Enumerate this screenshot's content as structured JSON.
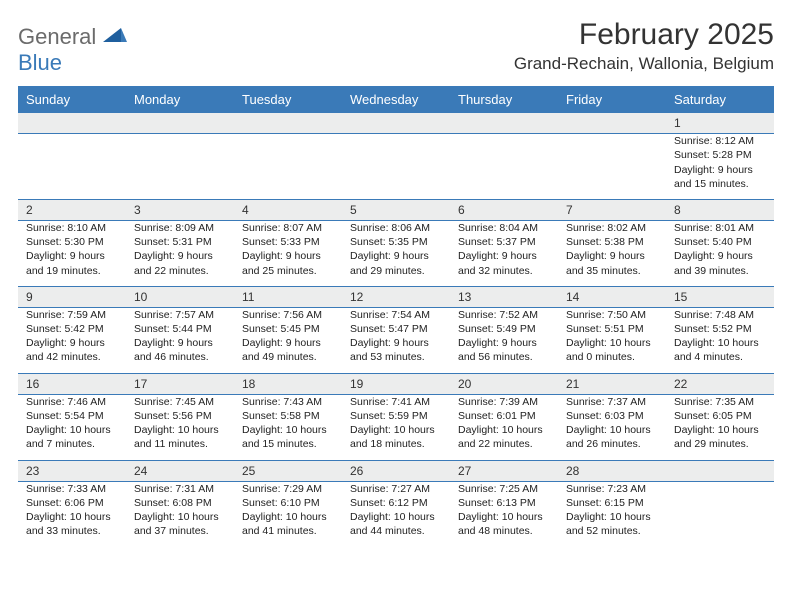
{
  "brand": {
    "word1": "General",
    "word2": "Blue"
  },
  "title": "February 2025",
  "location": "Grand-Rechain, Wallonia, Belgium",
  "colors": {
    "header_bg": "#3a7ab8",
    "header_text": "#ffffff",
    "daynum_bg": "#eceded",
    "border": "#3a7ab8",
    "text": "#222222",
    "logo_gray": "#6b6b6b",
    "logo_blue": "#3a7ab8",
    "page_bg": "#ffffff"
  },
  "fonts": {
    "title_size_pt": 22,
    "location_size_pt": 13,
    "header_size_pt": 10,
    "body_size_pt": 8
  },
  "day_headers": [
    "Sunday",
    "Monday",
    "Tuesday",
    "Wednesday",
    "Thursday",
    "Friday",
    "Saturday"
  ],
  "weeks": [
    [
      null,
      null,
      null,
      null,
      null,
      null,
      {
        "n": "1",
        "sunrise": "Sunrise: 8:12 AM",
        "sunset": "Sunset: 5:28 PM",
        "d1": "Daylight: 9 hours",
        "d2": "and 15 minutes."
      }
    ],
    [
      {
        "n": "2",
        "sunrise": "Sunrise: 8:10 AM",
        "sunset": "Sunset: 5:30 PM",
        "d1": "Daylight: 9 hours",
        "d2": "and 19 minutes."
      },
      {
        "n": "3",
        "sunrise": "Sunrise: 8:09 AM",
        "sunset": "Sunset: 5:31 PM",
        "d1": "Daylight: 9 hours",
        "d2": "and 22 minutes."
      },
      {
        "n": "4",
        "sunrise": "Sunrise: 8:07 AM",
        "sunset": "Sunset: 5:33 PM",
        "d1": "Daylight: 9 hours",
        "d2": "and 25 minutes."
      },
      {
        "n": "5",
        "sunrise": "Sunrise: 8:06 AM",
        "sunset": "Sunset: 5:35 PM",
        "d1": "Daylight: 9 hours",
        "d2": "and 29 minutes."
      },
      {
        "n": "6",
        "sunrise": "Sunrise: 8:04 AM",
        "sunset": "Sunset: 5:37 PM",
        "d1": "Daylight: 9 hours",
        "d2": "and 32 minutes."
      },
      {
        "n": "7",
        "sunrise": "Sunrise: 8:02 AM",
        "sunset": "Sunset: 5:38 PM",
        "d1": "Daylight: 9 hours",
        "d2": "and 35 minutes."
      },
      {
        "n": "8",
        "sunrise": "Sunrise: 8:01 AM",
        "sunset": "Sunset: 5:40 PM",
        "d1": "Daylight: 9 hours",
        "d2": "and 39 minutes."
      }
    ],
    [
      {
        "n": "9",
        "sunrise": "Sunrise: 7:59 AM",
        "sunset": "Sunset: 5:42 PM",
        "d1": "Daylight: 9 hours",
        "d2": "and 42 minutes."
      },
      {
        "n": "10",
        "sunrise": "Sunrise: 7:57 AM",
        "sunset": "Sunset: 5:44 PM",
        "d1": "Daylight: 9 hours",
        "d2": "and 46 minutes."
      },
      {
        "n": "11",
        "sunrise": "Sunrise: 7:56 AM",
        "sunset": "Sunset: 5:45 PM",
        "d1": "Daylight: 9 hours",
        "d2": "and 49 minutes."
      },
      {
        "n": "12",
        "sunrise": "Sunrise: 7:54 AM",
        "sunset": "Sunset: 5:47 PM",
        "d1": "Daylight: 9 hours",
        "d2": "and 53 minutes."
      },
      {
        "n": "13",
        "sunrise": "Sunrise: 7:52 AM",
        "sunset": "Sunset: 5:49 PM",
        "d1": "Daylight: 9 hours",
        "d2": "and 56 minutes."
      },
      {
        "n": "14",
        "sunrise": "Sunrise: 7:50 AM",
        "sunset": "Sunset: 5:51 PM",
        "d1": "Daylight: 10 hours",
        "d2": "and 0 minutes."
      },
      {
        "n": "15",
        "sunrise": "Sunrise: 7:48 AM",
        "sunset": "Sunset: 5:52 PM",
        "d1": "Daylight: 10 hours",
        "d2": "and 4 minutes."
      }
    ],
    [
      {
        "n": "16",
        "sunrise": "Sunrise: 7:46 AM",
        "sunset": "Sunset: 5:54 PM",
        "d1": "Daylight: 10 hours",
        "d2": "and 7 minutes."
      },
      {
        "n": "17",
        "sunrise": "Sunrise: 7:45 AM",
        "sunset": "Sunset: 5:56 PM",
        "d1": "Daylight: 10 hours",
        "d2": "and 11 minutes."
      },
      {
        "n": "18",
        "sunrise": "Sunrise: 7:43 AM",
        "sunset": "Sunset: 5:58 PM",
        "d1": "Daylight: 10 hours",
        "d2": "and 15 minutes."
      },
      {
        "n": "19",
        "sunrise": "Sunrise: 7:41 AM",
        "sunset": "Sunset: 5:59 PM",
        "d1": "Daylight: 10 hours",
        "d2": "and 18 minutes."
      },
      {
        "n": "20",
        "sunrise": "Sunrise: 7:39 AM",
        "sunset": "Sunset: 6:01 PM",
        "d1": "Daylight: 10 hours",
        "d2": "and 22 minutes."
      },
      {
        "n": "21",
        "sunrise": "Sunrise: 7:37 AM",
        "sunset": "Sunset: 6:03 PM",
        "d1": "Daylight: 10 hours",
        "d2": "and 26 minutes."
      },
      {
        "n": "22",
        "sunrise": "Sunrise: 7:35 AM",
        "sunset": "Sunset: 6:05 PM",
        "d1": "Daylight: 10 hours",
        "d2": "and 29 minutes."
      }
    ],
    [
      {
        "n": "23",
        "sunrise": "Sunrise: 7:33 AM",
        "sunset": "Sunset: 6:06 PM",
        "d1": "Daylight: 10 hours",
        "d2": "and 33 minutes."
      },
      {
        "n": "24",
        "sunrise": "Sunrise: 7:31 AM",
        "sunset": "Sunset: 6:08 PM",
        "d1": "Daylight: 10 hours",
        "d2": "and 37 minutes."
      },
      {
        "n": "25",
        "sunrise": "Sunrise: 7:29 AM",
        "sunset": "Sunset: 6:10 PM",
        "d1": "Daylight: 10 hours",
        "d2": "and 41 minutes."
      },
      {
        "n": "26",
        "sunrise": "Sunrise: 7:27 AM",
        "sunset": "Sunset: 6:12 PM",
        "d1": "Daylight: 10 hours",
        "d2": "and 44 minutes."
      },
      {
        "n": "27",
        "sunrise": "Sunrise: 7:25 AM",
        "sunset": "Sunset: 6:13 PM",
        "d1": "Daylight: 10 hours",
        "d2": "and 48 minutes."
      },
      {
        "n": "28",
        "sunrise": "Sunrise: 7:23 AM",
        "sunset": "Sunset: 6:15 PM",
        "d1": "Daylight: 10 hours",
        "d2": "and 52 minutes."
      },
      null
    ]
  ]
}
